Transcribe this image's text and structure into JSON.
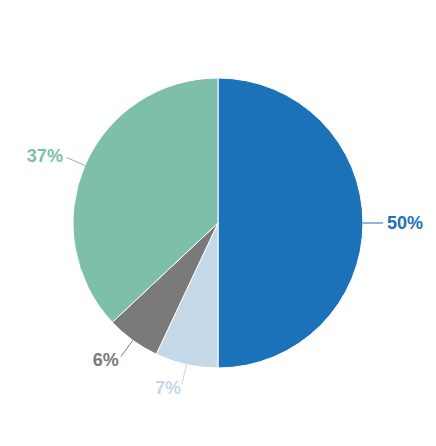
{
  "chart_data": {
    "type": "pie",
    "values": [
      50,
      7,
      6,
      37
    ],
    "value_labels": [
      "50%",
      "7%",
      "6%",
      "37%"
    ],
    "colors": [
      "#1b72b8",
      "#c5d8e8",
      "#7a7a7a",
      "#7dbfaa"
    ],
    "data_labels": true
  }
}
